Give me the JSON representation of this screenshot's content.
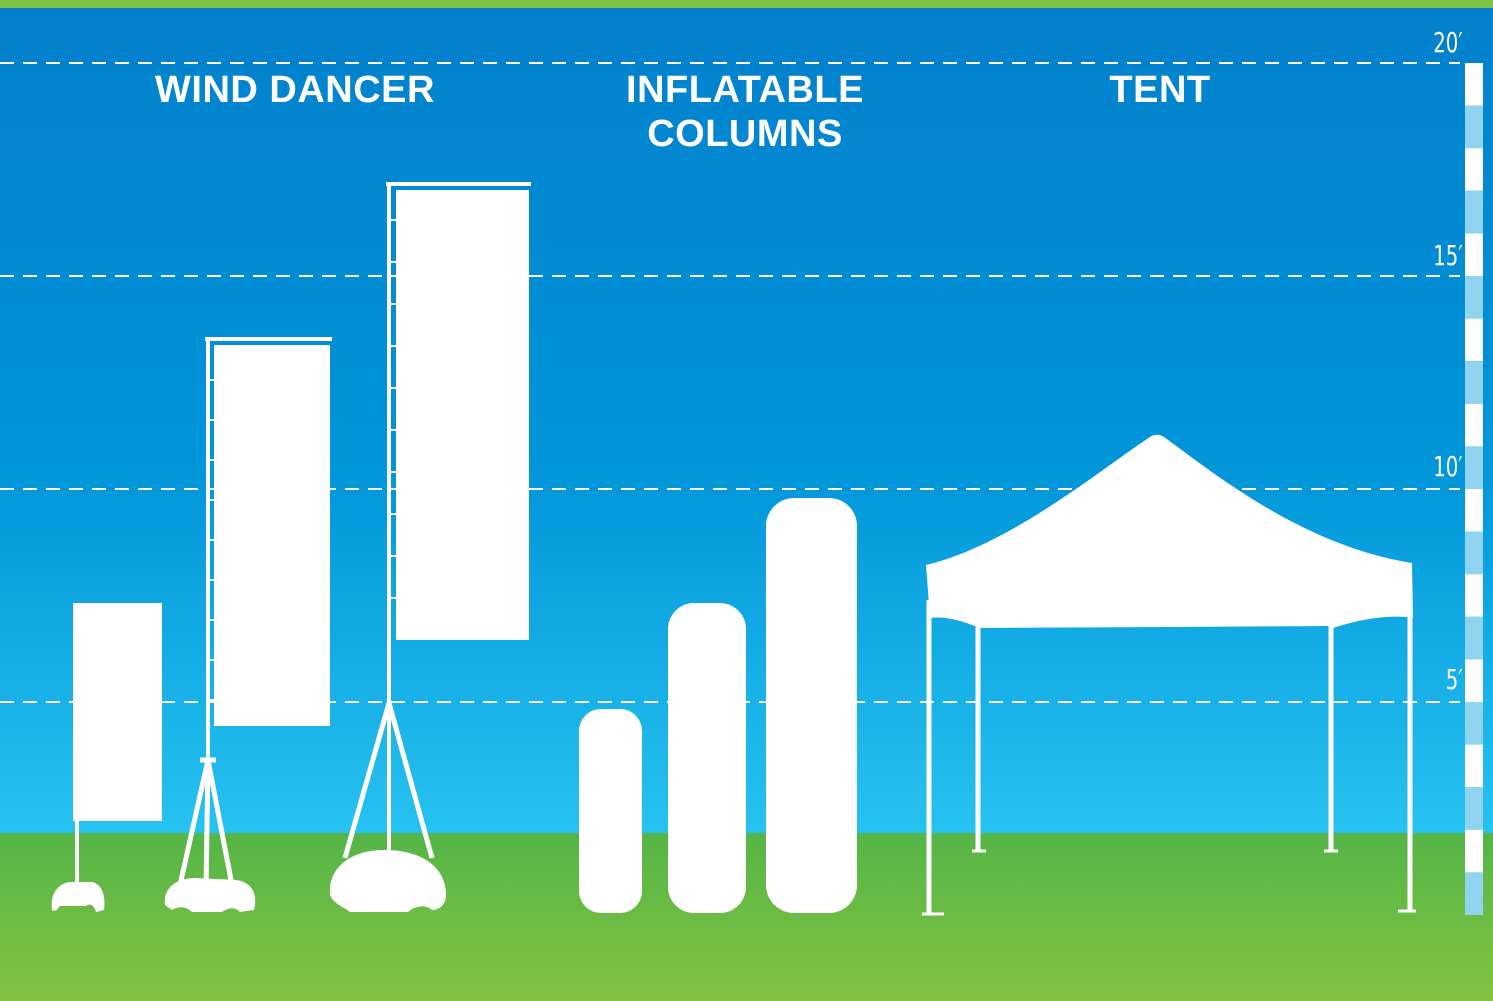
{
  "colors": {
    "sky_top": "#0280cc",
    "sky_mid": "#0195d9",
    "sky_bottom": "#26c2f0",
    "grass_top": "#55b547",
    "grass_bottom": "#82c341",
    "silhouette": "#ffffff",
    "scale_light": "#8fd3ef"
  },
  "sections": [
    {
      "title": "WIND DANCER",
      "icon": "wind-dancer-flag-icon"
    },
    {
      "title": "INFLATABLE\nCOLUMNS",
      "icon": "inflatable-column-icon"
    },
    {
      "title": "TENT",
      "icon": "canopy-tent-icon"
    }
  ],
  "height_scale": {
    "unit": "feet",
    "marks": [
      {
        "label": "20′",
        "value": 20
      },
      {
        "label": "15′",
        "value": 15
      },
      {
        "label": "10′",
        "value": 10
      },
      {
        "label": "5′",
        "value": 5
      }
    ]
  }
}
